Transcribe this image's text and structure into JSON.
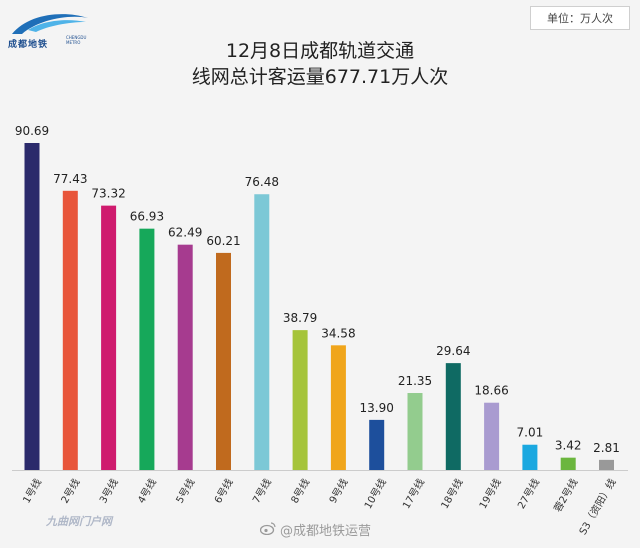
{
  "header": {
    "logo_text": "成都地铁",
    "logo_sub": "CHENGDU METRO",
    "unit_label": "单位：万人次"
  },
  "chart_data": {
    "type": "bar",
    "title_line1": "12月8日成都轨道交通",
    "title_line2": "线网总计客运量677.71万人次",
    "categories": [
      "1号线",
      "2号线",
      "3号线",
      "4号线",
      "5号线",
      "6号线",
      "7号线",
      "8号线",
      "9号线",
      "10号线",
      "17号线",
      "18号线",
      "19号线",
      "27号线",
      "蓉2号线",
      "S3（资阳）线"
    ],
    "values": [
      90.69,
      77.43,
      73.32,
      66.93,
      62.49,
      60.21,
      76.48,
      38.79,
      34.58,
      13.9,
      21.35,
      29.64,
      18.66,
      7.01,
      3.42,
      2.81
    ],
    "value_labels": [
      "90.69",
      "77.43",
      "73.32",
      "66.93",
      "62.49",
      "60.21",
      "76.48",
      "38.79",
      "34.58",
      "13.90",
      "21.35",
      "29.64",
      "18.66",
      "7.01",
      "3.42",
      "2.81"
    ],
    "colors": [
      "#2b2a6b",
      "#e8553a",
      "#cf1b6e",
      "#16a85a",
      "#a63b8f",
      "#c06a1e",
      "#7cc8d6",
      "#a5c43a",
      "#f0a51b",
      "#1d4f9c",
      "#93cc8e",
      "#0f6a63",
      "#a99bd0",
      "#1aa8e0",
      "#6bb63e",
      "#999999"
    ],
    "ylim": [
      0,
      100
    ],
    "grid": false,
    "legend": "none"
  },
  "footer": {
    "watermark_left": "九曲网门户网",
    "watermark_right": "@成都地铁运营"
  }
}
